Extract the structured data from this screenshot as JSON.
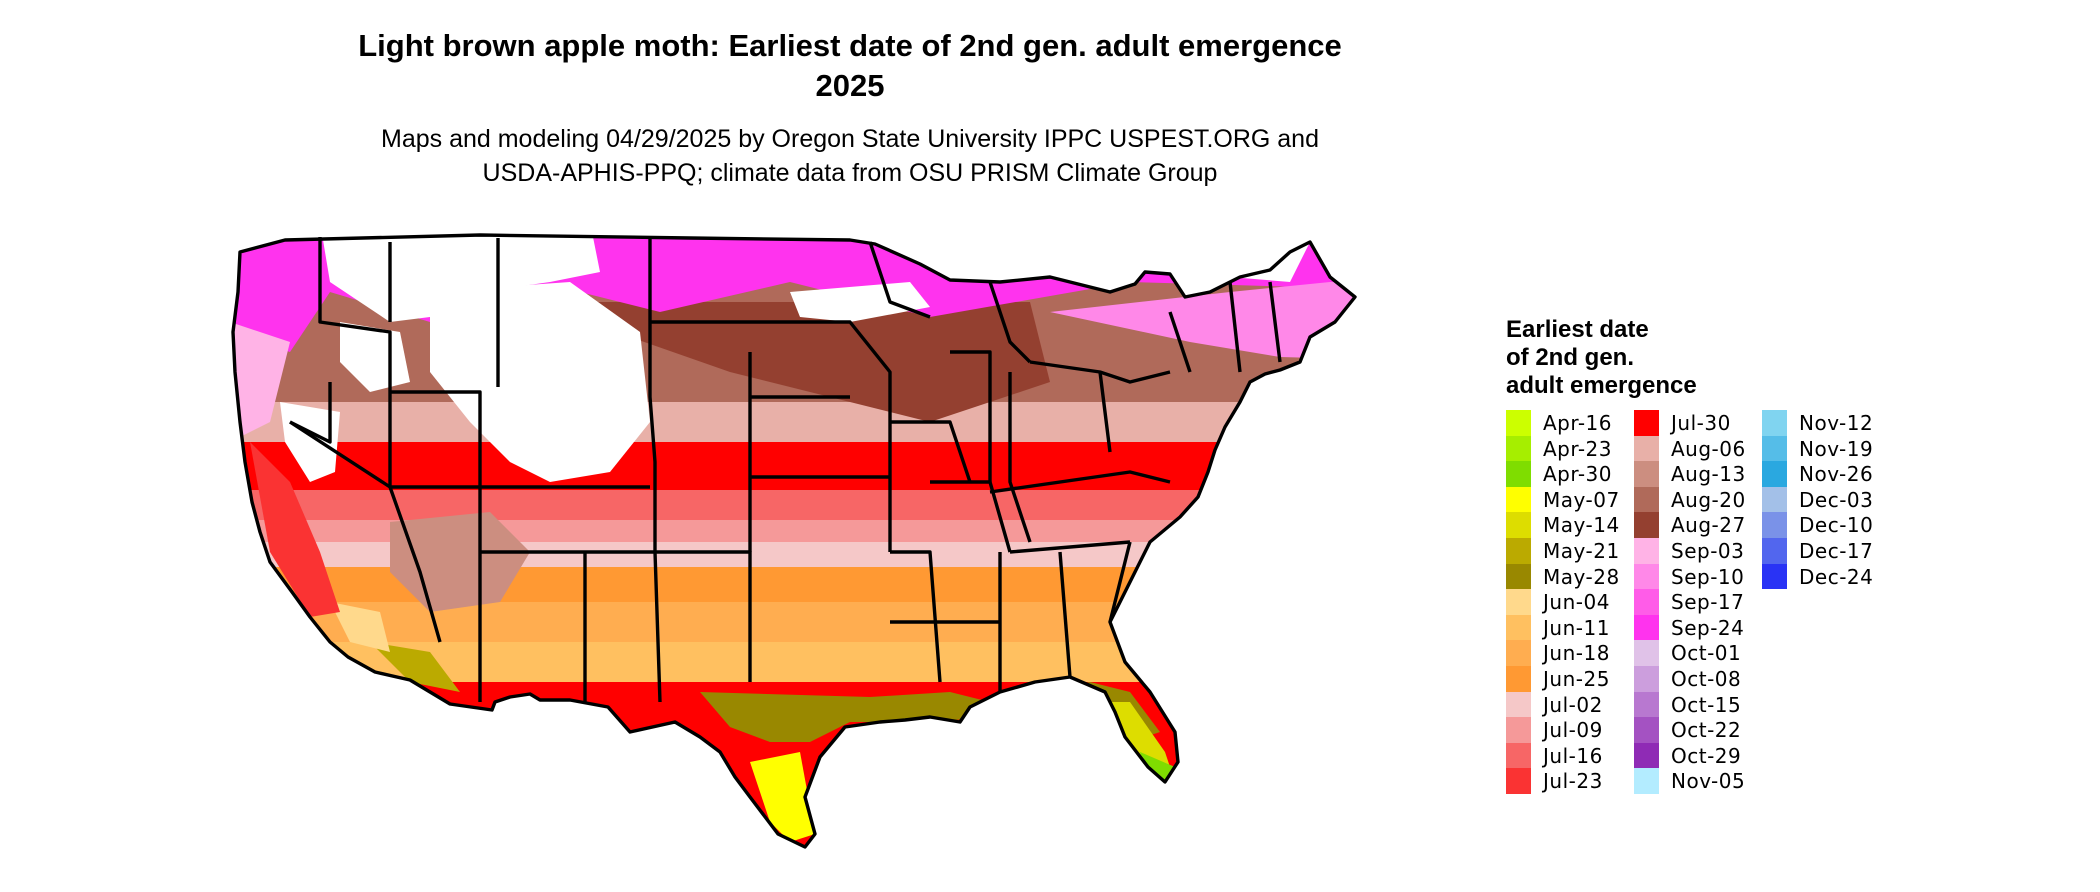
{
  "title_line1": "Light brown apple moth: Earliest date of 2nd gen. adult emergence",
  "title_line2": "2025",
  "subtitle_line1": "Maps and modeling 04/29/2025 by Oregon State University IPPC USPEST.ORG and",
  "subtitle_line2": "USDA-APHIS-PPQ; climate data from OSU PRISM Climate Group",
  "legend": {
    "title_line1": "Earliest date",
    "title_line2": "of 2nd gen.",
    "title_line3": "adult emergence",
    "columns": [
      [
        {
          "label": "Apr-16",
          "color": "#ccff00"
        },
        {
          "label": "Apr-23",
          "color": "#a6ee00"
        },
        {
          "label": "Apr-30",
          "color": "#7fdd00"
        },
        {
          "label": "May-07",
          "color": "#ffff00"
        },
        {
          "label": "May-14",
          "color": "#dddd00"
        },
        {
          "label": "May-21",
          "color": "#bbaa00"
        },
        {
          "label": "May-28",
          "color": "#998800"
        },
        {
          "label": "Jun-04",
          "color": "#ffd98c"
        },
        {
          "label": "Jun-11",
          "color": "#ffc060"
        },
        {
          "label": "Jun-18",
          "color": "#ffad50"
        },
        {
          "label": "Jun-25",
          "color": "#ff9933"
        },
        {
          "label": "Jul-02",
          "color": "#f5c8c8"
        },
        {
          "label": "Jul-09",
          "color": "#f59999"
        },
        {
          "label": "Jul-16",
          "color": "#f76666"
        },
        {
          "label": "Jul-23",
          "color": "#fa3333"
        }
      ],
      [
        {
          "label": "Jul-30",
          "color": "#ff0000"
        },
        {
          "label": "Aug-06",
          "color": "#e8b0a8"
        },
        {
          "label": "Aug-13",
          "color": "#cc8e80"
        },
        {
          "label": "Aug-20",
          "color": "#b06a5a"
        },
        {
          "label": "Aug-27",
          "color": "#944030"
        },
        {
          "label": "Sep-03",
          "color": "#ffb3e6"
        },
        {
          "label": "Sep-10",
          "color": "#ff88e8"
        },
        {
          "label": "Sep-17",
          "color": "#ff5ce8"
        },
        {
          "label": "Sep-24",
          "color": "#ff33ee"
        },
        {
          "label": "Oct-01",
          "color": "#e0c2e8"
        },
        {
          "label": "Oct-08",
          "color": "#cc9edd"
        },
        {
          "label": "Oct-15",
          "color": "#b878d0"
        },
        {
          "label": "Oct-22",
          "color": "#a452c2"
        },
        {
          "label": "Oct-29",
          "color": "#8f2bb5"
        },
        {
          "label": "Nov-05",
          "color": "#b3ecff"
        }
      ],
      [
        {
          "label": "Nov-12",
          "color": "#80d4f0"
        },
        {
          "label": "Nov-19",
          "color": "#55bde8"
        },
        {
          "label": "Nov-26",
          "color": "#2aa8e0"
        },
        {
          "label": "Dec-03",
          "color": "#a3c0e8"
        },
        {
          "label": "Dec-10",
          "color": "#7a92e8"
        },
        {
          "label": "Dec-17",
          "color": "#5266ee"
        },
        {
          "label": "Dec-24",
          "color": "#2933f5"
        }
      ]
    ]
  }
}
